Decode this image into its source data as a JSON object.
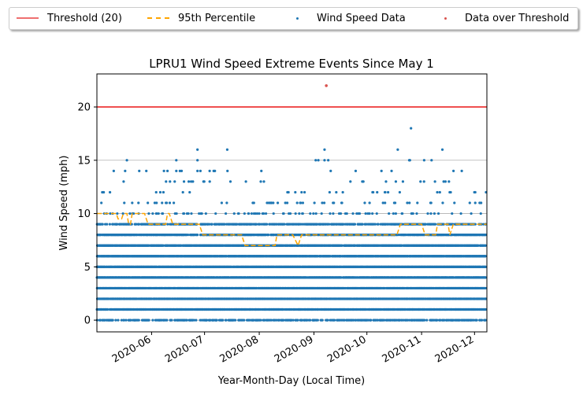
{
  "chart_data": {
    "type": "scatter",
    "title": "LPRU1 Wind Speed Extreme Events Since May 1",
    "xlabel": "Year-Month-Day (Local Time)",
    "ylabel": "Wind Speed (mph)",
    "xlim": [
      "2020-05-01",
      "2020-12-08"
    ],
    "ylim": [
      -1.1,
      23.1
    ],
    "x_ticks": [
      "2020-06",
      "2020-07",
      "2020-08",
      "2020-09",
      "2020-10",
      "2020-11",
      "2020-12"
    ],
    "y_ticks": [
      0,
      5,
      10,
      15,
      20
    ],
    "grid": "horizontal",
    "legend_position": "top, outside plot",
    "legend": [
      {
        "label": "Threshold (20)",
        "kind": "line",
        "color": "#ef6f6f"
      },
      {
        "label": "95th Percentile",
        "kind": "dashed-line",
        "color": "#ffa500"
      },
      {
        "label": "Wind Speed Data",
        "kind": "marker",
        "color": "#1f77b4"
      },
      {
        "label": "Data over Threshold",
        "kind": "marker",
        "color": "#d9534f"
      }
    ],
    "threshold": {
      "name": "Threshold (20)",
      "value": 20,
      "color": "#ef5050"
    },
    "percentile_95": {
      "name": "95th Percentile",
      "color": "#ffa500",
      "points": [
        [
          "2020-05-01",
          10
        ],
        [
          "2020-05-12",
          10
        ],
        [
          "2020-05-13",
          9.5
        ],
        [
          "2020-05-15",
          9.5
        ],
        [
          "2020-05-16",
          10
        ],
        [
          "2020-05-18",
          10
        ],
        [
          "2020-05-19",
          9
        ],
        [
          "2020-05-20",
          9
        ],
        [
          "2020-05-21",
          10
        ],
        [
          "2020-05-28",
          10
        ],
        [
          "2020-05-30",
          9
        ],
        [
          "2020-06-09",
          9
        ],
        [
          "2020-06-10",
          10
        ],
        [
          "2020-06-11",
          10
        ],
        [
          "2020-06-13",
          9
        ],
        [
          "2020-06-28",
          9
        ],
        [
          "2020-06-30",
          8
        ],
        [
          "2020-07-22",
          8
        ],
        [
          "2020-07-24",
          7
        ],
        [
          "2020-08-10",
          7
        ],
        [
          "2020-08-11",
          8
        ],
        [
          "2020-08-20",
          8
        ],
        [
          "2020-08-23",
          7
        ],
        [
          "2020-08-25",
          8
        ],
        [
          "2020-09-20",
          8
        ],
        [
          "2020-09-22",
          8
        ],
        [
          "2020-10-18",
          8
        ],
        [
          "2020-10-20",
          9
        ],
        [
          "2020-11-01",
          9
        ],
        [
          "2020-11-03",
          8
        ],
        [
          "2020-11-09",
          8
        ],
        [
          "2020-11-10",
          9
        ],
        [
          "2020-11-16",
          9
        ],
        [
          "2020-11-17",
          8
        ],
        [
          "2020-11-19",
          9
        ],
        [
          "2020-12-08",
          9
        ]
      ]
    },
    "wind_speed_data": {
      "name": "Wind Speed Data",
      "color": "#1f77b4",
      "values_mph": [
        0,
        1,
        2,
        3,
        4,
        5,
        6,
        7,
        8,
        9,
        10,
        11,
        12,
        13,
        14,
        15,
        16
      ],
      "density_per_value": [
        0.45,
        0.85,
        0.92,
        0.88,
        0.95,
        0.97,
        0.93,
        0.9,
        0.78,
        0.55,
        0.12,
        0.05,
        0.035,
        0.025,
        0.015,
        0.01,
        0.004
      ],
      "start": "2020-05-01",
      "end": "2020-12-08",
      "notable_points": [
        [
          "2020-06-27",
          16
        ],
        [
          "2020-09-07",
          16
        ],
        [
          "2020-10-26",
          18
        ],
        [
          "2020-05-18",
          15
        ],
        [
          "2020-06-15",
          15
        ],
        [
          "2020-06-27",
          15
        ],
        [
          "2020-09-02",
          15
        ],
        [
          "2020-09-07",
          15
        ],
        [
          "2020-10-25",
          15
        ],
        [
          "2020-05-17",
          14
        ],
        [
          "2020-05-29",
          14
        ],
        [
          "2020-06-08",
          14
        ],
        [
          "2020-06-10",
          14
        ],
        [
          "2020-06-15",
          14
        ],
        [
          "2020-07-14",
          14
        ],
        [
          "2020-06-27",
          14
        ]
      ]
    },
    "over_threshold": {
      "name": "Data over Threshold",
      "color": "#d9534f",
      "points": [
        [
          "2020-09-08",
          22
        ]
      ]
    }
  }
}
